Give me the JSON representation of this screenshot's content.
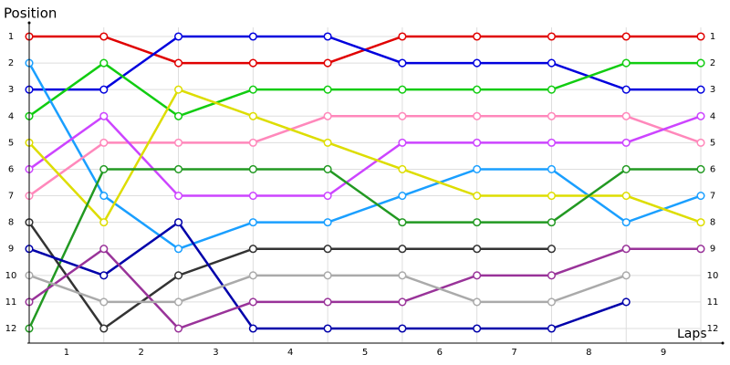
{
  "chart_data": {
    "type": "line",
    "y_label": "Position",
    "x_label": "Laps",
    "x": [
      0,
      1,
      2,
      3,
      4,
      5,
      6,
      7,
      8,
      9
    ],
    "xlim": [
      0,
      9
    ],
    "xticks": [
      {
        "value": 0.5,
        "label": "1"
      },
      {
        "value": 1.5,
        "label": "2"
      },
      {
        "value": 2.5,
        "label": "3"
      },
      {
        "value": 3.5,
        "label": "4"
      },
      {
        "value": 4.5,
        "label": "5"
      },
      {
        "value": 5.5,
        "label": "6"
      },
      {
        "value": 6.5,
        "label": "7"
      },
      {
        "value": 7.5,
        "label": "8"
      },
      {
        "value": 8.5,
        "label": "9"
      }
    ],
    "ylim": [
      12,
      1
    ],
    "yticks": [
      1,
      2,
      3,
      4,
      5,
      6,
      7,
      8,
      9,
      10,
      11,
      12
    ],
    "grid": true,
    "series": [
      {
        "color": "#e00000",
        "values": [
          1,
          1,
          2,
          2,
          2,
          1,
          1,
          1,
          1,
          1
        ]
      },
      {
        "color": "#0000dd",
        "values": [
          3,
          3,
          1,
          1,
          1,
          2,
          2,
          2,
          3,
          3
        ]
      },
      {
        "color": "#11cc11",
        "values": [
          4,
          2,
          4,
          3,
          3,
          3,
          3,
          3,
          2,
          2
        ]
      },
      {
        "color": "#1a9fff",
        "values": [
          2,
          7,
          9,
          8,
          8,
          7,
          6,
          6,
          8,
          7
        ]
      },
      {
        "color": "#ff88bb",
        "values": [
          7,
          5,
          5,
          5,
          4,
          4,
          4,
          4,
          4,
          5
        ]
      },
      {
        "color": "#cc44ff",
        "values": [
          6,
          4,
          7,
          7,
          7,
          5,
          5,
          5,
          5,
          4
        ]
      },
      {
        "color": "#dddd00",
        "values": [
          5,
          8,
          3,
          4,
          5,
          6,
          7,
          7,
          7,
          8
        ]
      },
      {
        "color": "#229922",
        "values": [
          12,
          6,
          6,
          6,
          6,
          8,
          8,
          8,
          6,
          6
        ]
      },
      {
        "color": "#333333",
        "values": [
          8,
          12,
          10,
          9,
          9,
          9,
          9,
          9,
          null,
          null
        ]
      },
      {
        "color": "#0000aa",
        "values": [
          9,
          10,
          8,
          12,
          12,
          12,
          12,
          12,
          11,
          null
        ]
      },
      {
        "color": "#993399",
        "values": [
          11,
          9,
          12,
          11,
          11,
          11,
          10,
          10,
          9,
          9
        ]
      },
      {
        "color": "#aaaaaa",
        "values": [
          10,
          11,
          11,
          10,
          10,
          10,
          11,
          11,
          10,
          null
        ]
      }
    ]
  }
}
